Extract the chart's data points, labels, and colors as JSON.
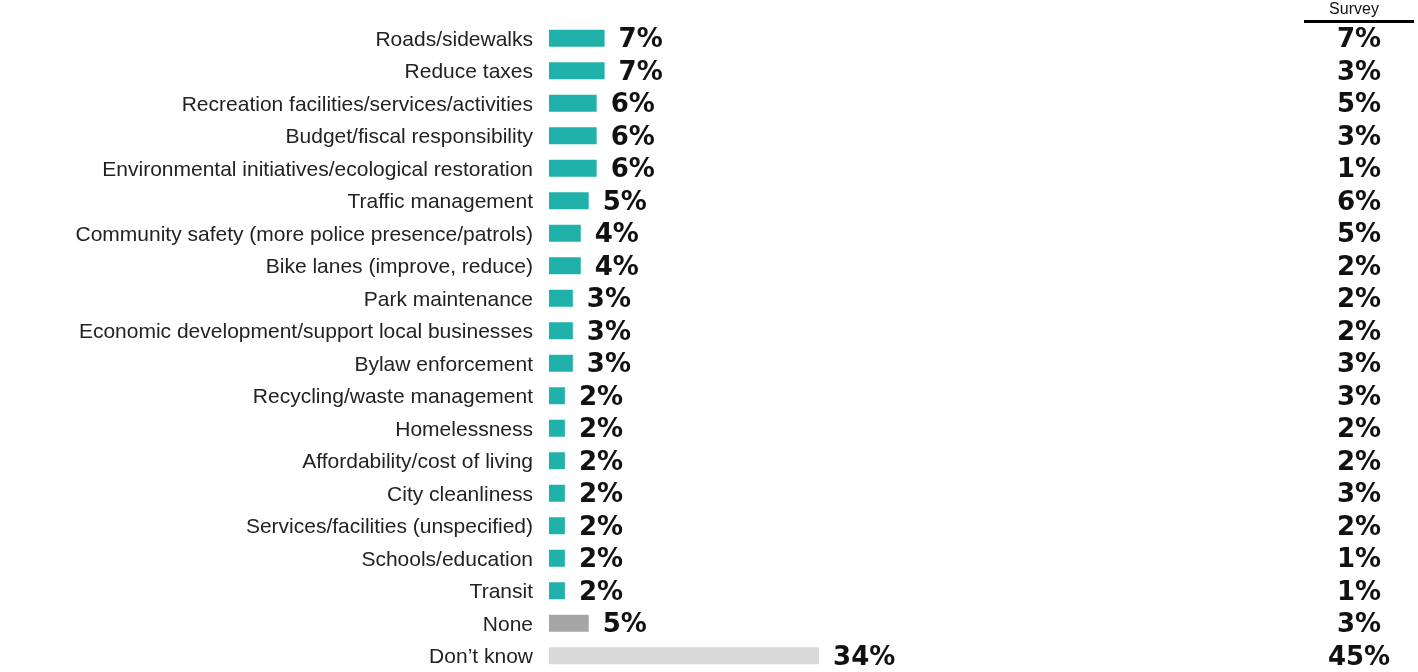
{
  "chart_data": [
    {
      "type": "bar",
      "orientation": "horizontal",
      "categories": [
        "Roads/sidewalks",
        "Reduce taxes",
        "Recreation facilities/services/activities",
        "Budget/fiscal responsibility",
        "Environmental initiatives/ecological restoration",
        "Traffic management",
        "Community safety (more police presence/patrols)",
        "Bike lanes (improve, reduce)",
        "Park maintenance",
        "Economic development/support local businesses",
        "Bylaw enforcement",
        "Recycling/waste management",
        "Homelessness",
        "Affordability/cost of living",
        "City cleanliness",
        "Services/facilities (unspecified)",
        "Schools/education",
        "Transit",
        "None",
        "Don’t know"
      ],
      "values": [
        7,
        7,
        6,
        6,
        6,
        5,
        4,
        4,
        3,
        3,
        3,
        2,
        2,
        2,
        2,
        2,
        2,
        2,
        5,
        34
      ],
      "colors": [
        "#20b2aa",
        "#20b2aa",
        "#20b2aa",
        "#20b2aa",
        "#20b2aa",
        "#20b2aa",
        "#20b2aa",
        "#20b2aa",
        "#20b2aa",
        "#20b2aa",
        "#20b2aa",
        "#20b2aa",
        "#20b2aa",
        "#20b2aa",
        "#20b2aa",
        "#20b2aa",
        "#20b2aa",
        "#20b2aa",
        "#a6a6a6",
        "#d9d9d9"
      ],
      "value_labels": [
        "7%",
        "7%",
        "6%",
        "6%",
        "6%",
        "5%",
        "4%",
        "4%",
        "3%",
        "3%",
        "3%",
        "2%",
        "2%",
        "2%",
        "2%",
        "2%",
        "2%",
        "2%",
        "5%",
        "34%"
      ]
    },
    {
      "type": "other",
      "title": "Survey",
      "annotations": [
        "7%",
        "3%",
        "5%",
        "3%",
        "1%",
        "6%",
        "5%",
        "2%",
        "2%",
        "2%",
        "3%",
        "3%",
        "2%",
        "2%",
        "3%",
        "2%",
        "1%",
        "1%",
        "3%",
        "45%"
      ]
    }
  ]
}
